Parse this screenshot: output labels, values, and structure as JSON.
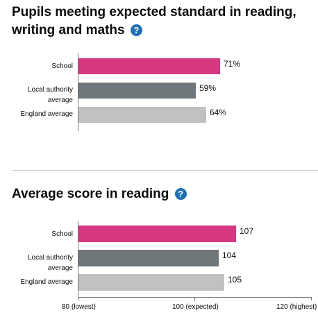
{
  "colors": {
    "school": "#d53880",
    "local_authority": "#6f777b",
    "england": "#bfc1c3",
    "help_icon": "#1d70b8"
  },
  "help_icon_glyph": "?",
  "sections": {
    "expected_standard": {
      "title_line1": "Pupils meeting expected standard in reading,",
      "title_line2": "writing and maths"
    },
    "average_reading": {
      "title": "Average score in reading"
    }
  },
  "chart_data": [
    {
      "type": "bar",
      "orientation": "horizontal",
      "title": "Pupils meeting expected standard in reading, writing and maths",
      "categories": [
        "School",
        "Local authority average",
        "England average"
      ],
      "values": [
        71,
        59,
        64
      ],
      "value_labels": [
        "71%",
        "59%",
        "64%"
      ],
      "xlim": [
        0,
        100
      ],
      "unit": "%"
    },
    {
      "type": "bar",
      "orientation": "horizontal",
      "title": "Average score in reading",
      "categories": [
        "School",
        "Local authority average",
        "England average"
      ],
      "values": [
        107,
        104,
        105
      ],
      "value_labels": [
        "107",
        "104",
        "105"
      ],
      "xlim": [
        80,
        120
      ],
      "ticks": [
        80,
        100,
        120
      ],
      "tick_labels": [
        "80 (lowest)",
        "100 (expected)",
        "120 (highest)"
      ]
    }
  ],
  "chart_labels": {
    "c1": {
      "cat0": "School",
      "cat1_line1": "Local authority",
      "cat1_line2": "average",
      "cat2": "England average",
      "v0": "71%",
      "v1": "59%",
      "v2": "64%"
    },
    "c2": {
      "cat0": "School",
      "cat1_line1": "Local authority",
      "cat1_line2": "average",
      "cat2": "England average",
      "v0": "107",
      "v1": "104",
      "v2": "105",
      "t0": "80 (lowest)",
      "t1": "100 (expected)",
      "t2": "120 (highest)"
    }
  }
}
